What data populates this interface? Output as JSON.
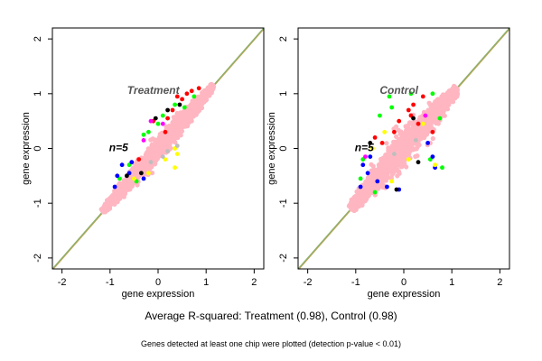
{
  "chart_data": [
    {
      "type": "scatter",
      "title": "Treatment",
      "annotation": "n=5",
      "xlabel": "gene expression",
      "ylabel": "gene expression",
      "xlim": [
        -2.2,
        2.2
      ],
      "ylim": [
        -2.2,
        2.2
      ],
      "xticks": [
        -2,
        -1,
        0,
        1,
        2
      ],
      "yticks": [
        -2,
        -1,
        0,
        1,
        2
      ],
      "grid": false,
      "reference_line": {
        "from": [
          -2.2,
          -2.2
        ],
        "to": [
          2.2,
          2.2
        ],
        "colors": [
          "#8db06a",
          "#c4a45a"
        ]
      },
      "cloud": {
        "color": "#ffb6c1",
        "x_range": [
          -1.15,
          1.15
        ],
        "core_halfwidth": 0.1,
        "tail_halfwidth": 0.38
      },
      "series": [
        {
          "color": "#ff0000",
          "points": [
            [
              0.3,
              0.7
            ],
            [
              0.5,
              0.9
            ],
            [
              0.7,
              1.05
            ],
            [
              0.2,
              0.55
            ],
            [
              0.6,
              1.0
            ],
            [
              -0.1,
              0.5
            ],
            [
              0.4,
              0.95
            ],
            [
              0.85,
              1.1
            ],
            [
              -0.4,
              -0.2
            ],
            [
              0.15,
              0.3
            ]
          ]
        },
        {
          "color": "#00ff00",
          "points": [
            [
              0.1,
              0.6
            ],
            [
              -0.3,
              0.25
            ],
            [
              0.35,
              0.8
            ],
            [
              -0.6,
              -0.3
            ],
            [
              0.55,
              0.75
            ],
            [
              -0.8,
              -0.55
            ],
            [
              0.75,
              0.95
            ],
            [
              -0.2,
              0.3
            ],
            [
              0.0,
              0.45
            ],
            [
              -0.45,
              -0.6
            ]
          ]
        },
        {
          "color": "#0000ff",
          "points": [
            [
              -0.75,
              -0.3
            ],
            [
              -0.55,
              -0.25
            ],
            [
              -0.85,
              -0.5
            ],
            [
              -0.6,
              -0.45
            ],
            [
              -0.3,
              -0.55
            ],
            [
              -0.9,
              -0.7
            ]
          ]
        },
        {
          "color": "#ffff00",
          "points": [
            [
              -0.5,
              -0.55
            ],
            [
              0.35,
              0.0
            ],
            [
              0.4,
              -0.1
            ],
            [
              -0.2,
              -0.45
            ],
            [
              0.15,
              -0.2
            ],
            [
              0.35,
              -0.35
            ]
          ]
        },
        {
          "color": "#000000",
          "points": [
            [
              0.45,
              0.8
            ],
            [
              0.2,
              0.7
            ],
            [
              -0.65,
              -0.5
            ],
            [
              -0.35,
              -0.45
            ],
            [
              -0.05,
              0.55
            ]
          ]
        },
        {
          "color": "#bebebe",
          "points": [
            [
              0.2,
              -0.05
            ],
            [
              0.1,
              -0.15
            ],
            [
              -0.15,
              -0.25
            ],
            [
              0.4,
              0.05
            ]
          ]
        },
        {
          "color": "#ff00ff",
          "points": [
            [
              -0.15,
              0.5
            ],
            [
              0.1,
              0.45
            ],
            [
              -0.3,
              0.15
            ]
          ]
        }
      ]
    },
    {
      "type": "scatter",
      "title": "Control",
      "annotation": "n=5",
      "xlabel": "gene expression",
      "ylabel": "gene expression",
      "xlim": [
        -2.2,
        2.2
      ],
      "ylim": [
        -2.2,
        2.2
      ],
      "xticks": [
        -2,
        -1,
        0,
        1,
        2
      ],
      "yticks": [
        -2,
        -1,
        0,
        1,
        2
      ],
      "grid": false,
      "reference_line": {
        "from": [
          -2.2,
          -2.2
        ],
        "to": [
          2.2,
          2.2
        ],
        "colors": [
          "#8db06a",
          "#c4a45a"
        ]
      },
      "cloud": {
        "color": "#ffb6c1",
        "x_range": [
          -1.1,
          1.1
        ],
        "core_halfwidth": 0.14,
        "tail_halfwidth": 0.6
      },
      "series": [
        {
          "color": "#ff0000",
          "points": [
            [
              0.2,
              0.8
            ],
            [
              0.4,
              0.95
            ],
            [
              0.15,
              0.6
            ],
            [
              -0.1,
              0.5
            ],
            [
              -0.6,
              0.2
            ],
            [
              -0.2,
              0.3
            ],
            [
              0.6,
              0.3
            ],
            [
              0.3,
              0.45
            ],
            [
              -0.45,
              0.1
            ],
            [
              0.1,
              0.7
            ]
          ]
        },
        {
          "color": "#00ff00",
          "points": [
            [
              -0.3,
              0.95
            ],
            [
              0.6,
              1.0
            ],
            [
              0.75,
              0.55
            ],
            [
              -0.85,
              -0.2
            ],
            [
              -0.9,
              -0.55
            ],
            [
              -0.6,
              -0.8
            ],
            [
              0.55,
              -0.2
            ],
            [
              0.15,
              1.0
            ],
            [
              -0.5,
              0.6
            ],
            [
              0.8,
              -0.35
            ],
            [
              -0.25,
              0.75
            ]
          ]
        },
        {
          "color": "#0000ff",
          "points": [
            [
              -0.7,
              -0.15
            ],
            [
              -0.85,
              -0.3
            ],
            [
              -0.55,
              -0.6
            ],
            [
              -0.9,
              -0.7
            ],
            [
              0.6,
              -0.15
            ],
            [
              0.65,
              -0.35
            ],
            [
              -0.35,
              -0.7
            ],
            [
              -0.75,
              -0.45
            ],
            [
              0.5,
              0.1
            ],
            [
              -0.1,
              -0.75
            ]
          ]
        },
        {
          "color": "#ffff00",
          "points": [
            [
              -0.65,
              0.0
            ],
            [
              0.65,
              -0.3
            ],
            [
              -0.25,
              -0.6
            ],
            [
              0.4,
              0.45
            ],
            [
              0.1,
              -0.2
            ],
            [
              -0.4,
              0.3
            ]
          ]
        },
        {
          "color": "#000000",
          "points": [
            [
              -0.15,
              -0.75
            ],
            [
              -0.7,
              0.1
            ],
            [
              0.3,
              -0.25
            ],
            [
              0.2,
              0.55
            ]
          ]
        },
        {
          "color": "#ff00ff",
          "points": [
            [
              -0.8,
              -0.15
            ],
            [
              0.45,
              0.6
            ]
          ]
        },
        {
          "color": "#bebebe",
          "points": [
            [
              0.25,
              0.15
            ],
            [
              -0.2,
              -0.1
            ]
          ]
        }
      ]
    }
  ],
  "captions": {
    "main": "Average R-squared: Treatment (0.98), Control (0.98)",
    "footnote": "Genes detected at least one chip were plotted (detection p-value < 0.01)"
  }
}
